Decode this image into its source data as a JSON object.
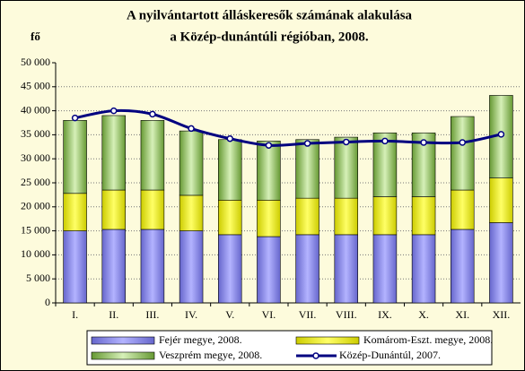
{
  "chart_data": {
    "type": "bar",
    "stacked": true,
    "title": [
      "A nyilvántartott álláskeresők számának alakulása",
      "a Közép-dunántúli régióban, 2008."
    ],
    "y_label": "fő",
    "categories": [
      "I.",
      "II.",
      "III.",
      "IV.",
      "V.",
      "VI.",
      "VII.",
      "VIII.",
      "IX.",
      "X.",
      "XI.",
      "XII."
    ],
    "series": [
      {
        "name": "Fejér megye, 2008.",
        "color": "#9999ff",
        "values": [
          15000,
          15300,
          15300,
          15000,
          14200,
          13800,
          14200,
          14200,
          14200,
          14200,
          15300,
          16700
        ]
      },
      {
        "name": "Komárom-Eszt. megye, 2008.",
        "color": "#ffff00",
        "values": [
          7800,
          8200,
          8200,
          7400,
          7200,
          7600,
          7600,
          7600,
          7900,
          7900,
          8200,
          9300
        ]
      },
      {
        "name": "Veszprém megye, 2008.",
        "color": "#99cc66",
        "values": [
          15200,
          15500,
          14500,
          13400,
          12600,
          12300,
          12200,
          12700,
          13300,
          13300,
          15300,
          17200
        ]
      },
      {
        "name": "Közép-Dunántúl, 2007.",
        "color": "#000080",
        "type": "line",
        "values": [
          38500,
          40000,
          39300,
          36300,
          34200,
          32800,
          33200,
          33500,
          33700,
          33400,
          33400,
          35100
        ]
      }
    ],
    "ylim": [
      0,
      50000
    ],
    "yticks": [
      0,
      {
        "value": 5000,
        "label": "5 000"
      },
      {
        "value": 10000,
        "label": "10 000"
      },
      {
        "value": 15000,
        "label": "15 000"
      },
      {
        "value": 20000,
        "label": "20 000"
      },
      {
        "value": 25000,
        "label": "25 000"
      },
      {
        "value": 30000,
        "label": "30 000"
      },
      {
        "value": 35000,
        "label": "35 000"
      },
      {
        "value": 40000,
        "label": "40 000"
      },
      {
        "value": 45000,
        "label": "45 000"
      },
      {
        "value": 50000,
        "label": "50 000"
      }
    ],
    "grid": true
  }
}
